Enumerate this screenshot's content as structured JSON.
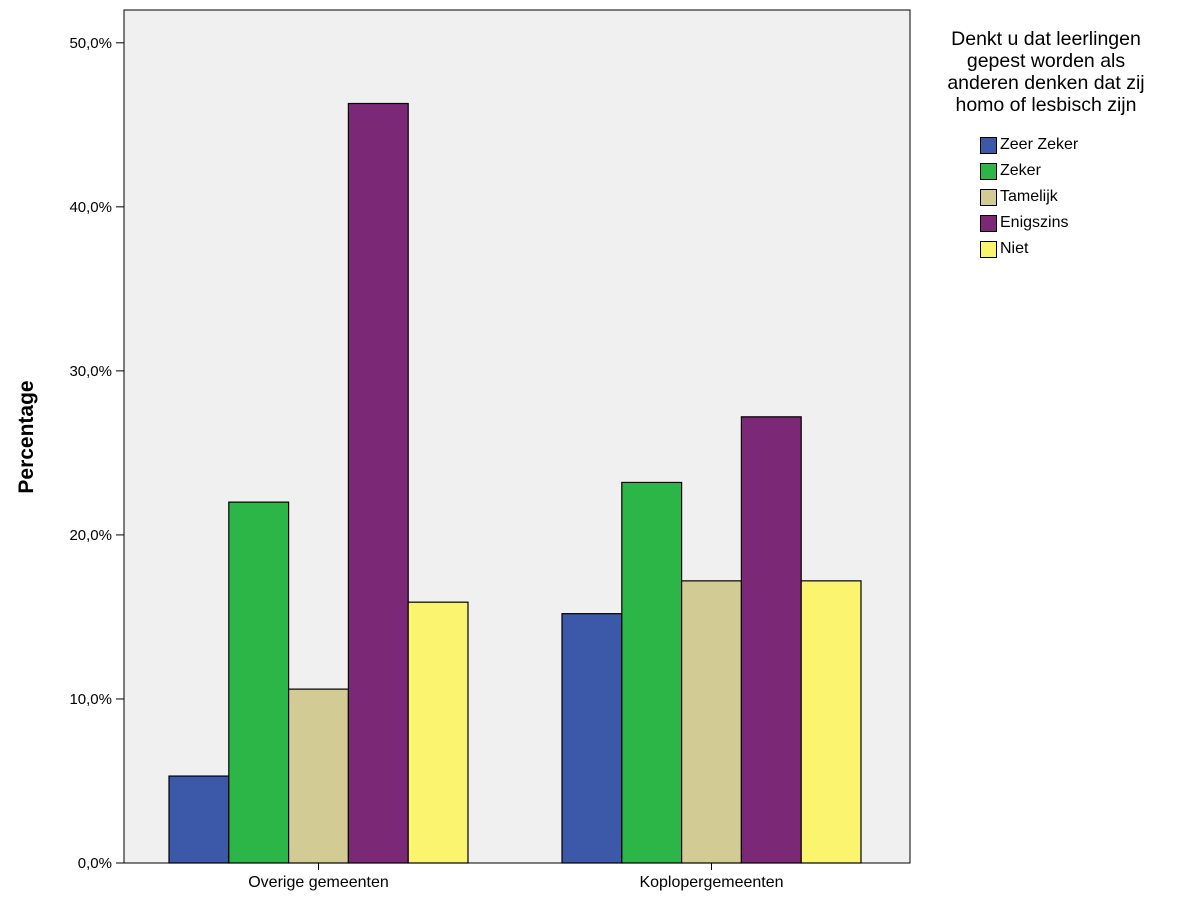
{
  "chart_data": {
    "type": "bar",
    "categories": [
      "Overige gemeenten",
      "Koplopergemeenten"
    ],
    "series": [
      {
        "name": "Zeer Zeker",
        "color": "#3c58a8",
        "values": [
          5.3,
          15.2
        ]
      },
      {
        "name": "Zeker",
        "color": "#2db648",
        "values": [
          22.0,
          23.2
        ]
      },
      {
        "name": "Tamelijk",
        "color": "#d3cb94",
        "values": [
          10.6,
          17.2
        ]
      },
      {
        "name": "Enigszins",
        "color": "#7b2876",
        "values": [
          46.3,
          27.2
        ]
      },
      {
        "name": "Niet",
        "color": "#fbf46e",
        "values": [
          15.9,
          17.2
        ]
      }
    ],
    "ylabel": "Percentage",
    "xlabel": "",
    "ylim": [
      0,
      52
    ],
    "yticks": [
      "0,0%",
      "10,0%",
      "20,0%",
      "30,0%",
      "40,0%",
      "50,0%"
    ],
    "ytick_values": [
      0,
      10,
      20,
      30,
      40,
      50
    ],
    "legend": {
      "title_lines": [
        "Denkt u dat leerlingen",
        "gepest worden als",
        "anderen denken dat zij",
        "homo of lesbisch zijn"
      ],
      "placement": "right"
    },
    "plot_background": "#f0f0f0",
    "grid": false
  }
}
